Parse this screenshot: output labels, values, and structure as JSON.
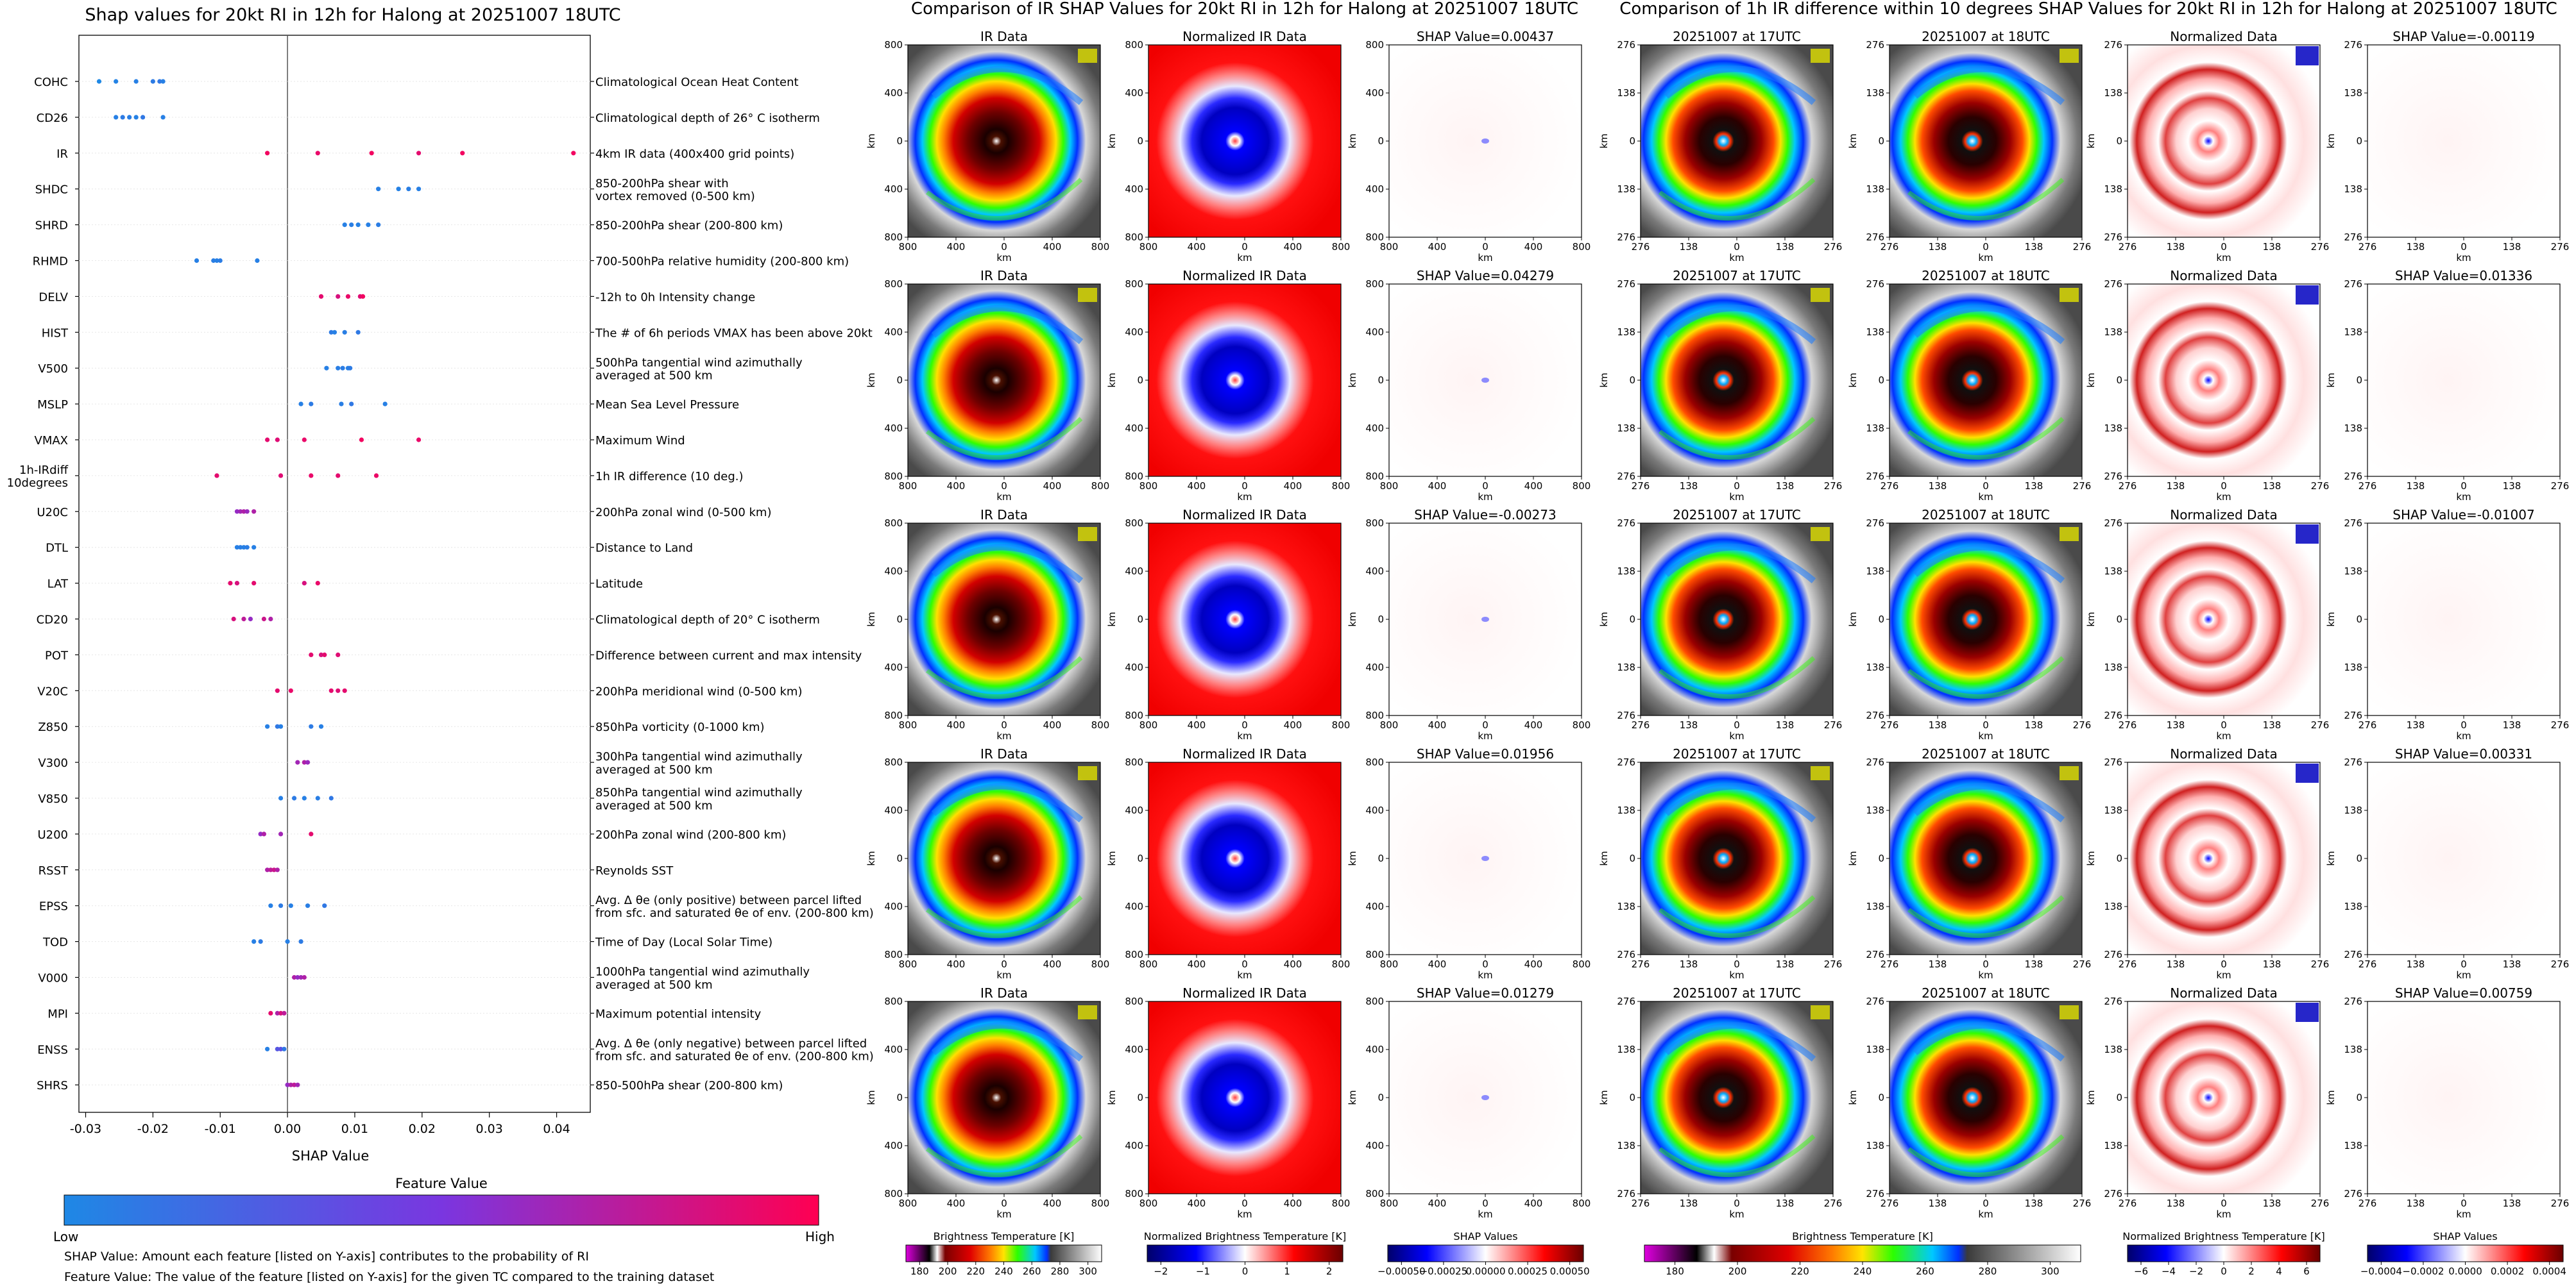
{
  "chart_data": [
    {
      "type": "scatter",
      "title": "Shap values for 20kt RI in 12h for Halong at 20251007 18UTC",
      "xlabel": "SHAP Value",
      "xlim": [
        -0.031,
        0.045
      ],
      "xticks": [
        -0.03,
        -0.02,
        -0.01,
        0.0,
        0.01,
        0.02,
        0.03,
        0.04
      ],
      "colorbar": {
        "title": "Feature Value",
        "low_label": "Low",
        "high_label": "High",
        "colors": [
          "#1e88e5",
          "#7a36e0",
          "#ff0052"
        ]
      },
      "footnotes": [
        "SHAP Value: Amount each feature [listed on Y-axis] contributes to the probability of RI",
        "Feature Value: The value of the feature [listed on Y-axis] for the given TC compared to the training dataset"
      ],
      "features": [
        {
          "name": "COHC",
          "desc": "Climatological Ocean Heat Content",
          "points": [
            [
              -0.028,
              0.0
            ],
            [
              -0.0255,
              0.03
            ],
            [
              -0.0225,
              0.05
            ],
            [
              -0.02,
              0.08
            ],
            [
              -0.019,
              0.1
            ],
            [
              -0.0185,
              0.05
            ]
          ]
        },
        {
          "name": "CD26",
          "desc": "Climatological depth of 26° C isotherm",
          "points": [
            [
              -0.0255,
              0.05
            ],
            [
              -0.0245,
              0.08
            ],
            [
              -0.0235,
              0.06
            ],
            [
              -0.0225,
              0.04
            ],
            [
              -0.0215,
              0.1
            ],
            [
              -0.0185,
              0.05
            ]
          ]
        },
        {
          "name": "IR",
          "desc": "4km IR data (400x400 grid points)",
          "points": [
            [
              -0.003,
              0.95
            ],
            [
              0.0045,
              0.92
            ],
            [
              0.0125,
              0.95
            ],
            [
              0.0195,
              0.9
            ],
            [
              0.026,
              0.95
            ],
            [
              0.0425,
              0.95
            ]
          ]
        },
        {
          "name": "SHDC",
          "desc": "850-200hPa shear with\nvortex removed (0-500 km)",
          "points": [
            [
              0.0135,
              0.05
            ],
            [
              0.0165,
              0.04
            ],
            [
              0.018,
              0.06
            ],
            [
              0.0195,
              0.05
            ]
          ]
        },
        {
          "name": "SHRD",
          "desc": "850-200hPa shear (200-800 km)",
          "points": [
            [
              0.0085,
              0.05
            ],
            [
              0.0095,
              0.06
            ],
            [
              0.0105,
              0.04
            ],
            [
              0.012,
              0.05
            ],
            [
              0.0135,
              0.07
            ]
          ]
        },
        {
          "name": "RHMD",
          "desc": "700-500hPa relative humidity (200-800 km)",
          "points": [
            [
              -0.0135,
              0.05
            ],
            [
              -0.011,
              0.06
            ],
            [
              -0.0105,
              0.05
            ],
            [
              -0.01,
              0.07
            ],
            [
              -0.0045,
              0.05
            ]
          ]
        },
        {
          "name": "DELV",
          "desc": "-12h to 0h Intensity change",
          "points": [
            [
              0.005,
              0.9
            ],
            [
              0.0075,
              0.85
            ],
            [
              0.009,
              0.92
            ],
            [
              0.0108,
              0.88
            ],
            [
              0.0112,
              0.95
            ]
          ]
        },
        {
          "name": "HIST",
          "desc": "The # of 6h periods VMAX has been above 20kt",
          "points": [
            [
              0.0065,
              0.08
            ],
            [
              0.007,
              0.05
            ],
            [
              0.0085,
              0.06
            ],
            [
              0.0105,
              0.09
            ]
          ]
        },
        {
          "name": "V500",
          "desc": "500hPa tangential wind azimuthally\naveraged at 500 km",
          "points": [
            [
              0.0058,
              0.05
            ],
            [
              0.0075,
              0.06
            ],
            [
              0.0082,
              0.07
            ],
            [
              0.009,
              0.05
            ],
            [
              0.0093,
              0.08
            ]
          ]
        },
        {
          "name": "MSLP",
          "desc": "Mean Sea Level Pressure",
          "points": [
            [
              0.002,
              0.05
            ],
            [
              0.0035,
              0.08
            ],
            [
              0.008,
              0.06
            ],
            [
              0.0095,
              0.1
            ],
            [
              0.0145,
              0.05
            ]
          ]
        },
        {
          "name": "VMAX",
          "desc": "Maximum Wind",
          "points": [
            [
              -0.003,
              0.9
            ],
            [
              -0.0015,
              0.88
            ],
            [
              0.0025,
              0.92
            ],
            [
              0.011,
              0.95
            ],
            [
              0.0195,
              0.92
            ]
          ]
        },
        {
          "name": "1h-IRdiff\n10degrees",
          "desc": "1h IR difference (10 deg.)",
          "points": [
            [
              -0.0105,
              0.9
            ],
            [
              -0.001,
              0.88
            ],
            [
              0.0035,
              0.92
            ],
            [
              0.0075,
              0.9
            ],
            [
              0.0132,
              0.93
            ]
          ]
        },
        {
          "name": "U20C",
          "desc": "200hPa zonal wind (0-500 km)",
          "points": [
            [
              -0.0075,
              0.6
            ],
            [
              -0.007,
              0.65
            ],
            [
              -0.0065,
              0.7
            ],
            [
              -0.006,
              0.62
            ],
            [
              -0.005,
              0.7
            ]
          ]
        },
        {
          "name": "DTL",
          "desc": "Distance to Land",
          "points": [
            [
              -0.0075,
              0.05
            ],
            [
              -0.007,
              0.06
            ],
            [
              -0.0065,
              0.05
            ],
            [
              -0.006,
              0.07
            ],
            [
              -0.005,
              0.05
            ]
          ]
        },
        {
          "name": "LAT",
          "desc": "Latitude",
          "points": [
            [
              -0.0085,
              0.9
            ],
            [
              -0.0075,
              0.85
            ],
            [
              -0.005,
              0.9
            ],
            [
              0.0025,
              0.85
            ],
            [
              0.0045,
              0.92
            ]
          ]
        },
        {
          "name": "CD20",
          "desc": "Climatological depth of 20° C isotherm",
          "points": [
            [
              -0.008,
              0.85
            ],
            [
              -0.0065,
              0.75
            ],
            [
              -0.0055,
              0.6
            ],
            [
              -0.0035,
              0.8
            ],
            [
              -0.0025,
              0.7
            ]
          ]
        },
        {
          "name": "POT",
          "desc": "Difference between current and max intensity",
          "points": [
            [
              0.0035,
              0.9
            ],
            [
              0.005,
              0.85
            ],
            [
              0.0055,
              0.9
            ],
            [
              0.0075,
              0.88
            ]
          ]
        },
        {
          "name": "V20C",
          "desc": "200hPa meridional wind (0-500 km)",
          "points": [
            [
              -0.0015,
              0.9
            ],
            [
              0.0005,
              0.92
            ],
            [
              0.0065,
              0.9
            ],
            [
              0.0075,
              0.88
            ],
            [
              0.0085,
              0.9
            ]
          ]
        },
        {
          "name": "Z850",
          "desc": "850hPa vorticity (0-1000 km)",
          "points": [
            [
              -0.003,
              0.05
            ],
            [
              -0.0015,
              0.1
            ],
            [
              -0.001,
              0.05
            ],
            [
              0.0035,
              0.08
            ],
            [
              0.005,
              0.05
            ]
          ]
        },
        {
          "name": "V300",
          "desc": "300hPa tangential wind azimuthally\naveraged at 500 km",
          "points": [
            [
              0.0015,
              0.65
            ],
            [
              0.0025,
              0.7
            ],
            [
              0.003,
              0.62
            ]
          ]
        },
        {
          "name": "V850",
          "desc": "850hPa tangential wind azimuthally\naveraged at 500 km",
          "points": [
            [
              -0.001,
              0.05
            ],
            [
              0.001,
              0.08
            ],
            [
              0.0025,
              0.05
            ],
            [
              0.0045,
              0.06
            ],
            [
              0.0065,
              0.1
            ]
          ]
        },
        {
          "name": "U200",
          "desc": "200hPa zonal wind (200-800 km)",
          "points": [
            [
              -0.004,
              0.6
            ],
            [
              -0.0035,
              0.7
            ],
            [
              -0.001,
              0.65
            ],
            [
              0.0035,
              0.9
            ]
          ]
        },
        {
          "name": "RSST",
          "desc": "Reynolds SST",
          "points": [
            [
              -0.003,
              0.7
            ],
            [
              -0.0025,
              0.75
            ],
            [
              -0.002,
              0.8
            ],
            [
              -0.0015,
              0.7
            ]
          ]
        },
        {
          "name": "EPSS",
          "desc": "Avg. Δ θe (only positive) between parcel lifted\nfrom sfc. and saturated θe of env. (200-800 km)",
          "points": [
            [
              -0.0025,
              0.05
            ],
            [
              -0.001,
              0.08
            ],
            [
              0.0005,
              0.05
            ],
            [
              0.003,
              0.06
            ],
            [
              0.0055,
              0.1
            ]
          ]
        },
        {
          "name": "TOD",
          "desc": "Time of Day (Local Solar Time)",
          "points": [
            [
              -0.005,
              0.05
            ],
            [
              -0.004,
              0.08
            ],
            [
              0.0,
              0.05
            ],
            [
              0.002,
              0.08
            ]
          ]
        },
        {
          "name": "V000",
          "desc": "1000hPa tangential wind azimuthally\naveraged at 500 km",
          "points": [
            [
              0.001,
              0.7
            ],
            [
              0.0015,
              0.6
            ],
            [
              0.002,
              0.65
            ],
            [
              0.0025,
              0.7
            ]
          ]
        },
        {
          "name": "MPI",
          "desc": "Maximum potential intensity",
          "points": [
            [
              -0.0025,
              0.9
            ],
            [
              -0.0015,
              0.7
            ],
            [
              -0.001,
              0.85
            ],
            [
              -0.0005,
              0.75
            ]
          ]
        },
        {
          "name": "ENSS",
          "desc": "Avg. Δ θe (only negative) between parcel lifted\nfrom sfc. and saturated θe of env. (200-800 km)",
          "points": [
            [
              -0.003,
              0.05
            ],
            [
              -0.0015,
              0.3
            ],
            [
              -0.001,
              0.35
            ],
            [
              -0.0005,
              0.1
            ]
          ]
        },
        {
          "name": "SHRS",
          "desc": "850-500hPa shear (200-800 km)",
          "points": [
            [
              0.0,
              0.6
            ],
            [
              0.0005,
              0.7
            ],
            [
              0.001,
              0.75
            ],
            [
              0.0015,
              0.65
            ]
          ]
        }
      ]
    },
    {
      "type": "heatmap",
      "title": "Comparison of IR SHAP Values for 20kt RI in 12h for Halong at 20251007 18UTC",
      "axis_label": "km",
      "ticks_x": [
        "800",
        "400",
        "0",
        "400",
        "800"
      ],
      "ticks_y": [
        "800",
        "400",
        "0",
        "400",
        "800"
      ],
      "column_titles": [
        "IR Data",
        "Normalized IR Data"
      ],
      "shap_titles": [
        "SHAP Value=0.00437",
        "SHAP Value=0.04279",
        "SHAP Value=-0.00273",
        "SHAP Value=0.01956",
        "SHAP Value=0.01279"
      ],
      "colorbars": [
        {
          "label": "Brightness Temperature [K]",
          "ticks": [
            "180",
            "200",
            "220",
            "240",
            "260",
            "280",
            "300"
          ]
        },
        {
          "label": "Normalized Brightness Temperature [K]",
          "ticks": [
            "−2",
            "−1",
            "0",
            "1",
            "2"
          ]
        },
        {
          "label": "SHAP Values",
          "ticks": [
            "−0.00050",
            "−0.00025",
            "0.00000",
            "0.00025",
            "0.00050"
          ]
        }
      ]
    },
    {
      "type": "heatmap",
      "title": "Comparison of 1h IR difference within 10 degrees SHAP Values for 20kt RI in 12h for Halong at 20251007 18UTC",
      "axis_label": "km",
      "ticks_x": [
        "276",
        "138",
        "0",
        "138",
        "276"
      ],
      "ticks_y": [
        "276",
        "138",
        "0",
        "138",
        "276"
      ],
      "column_titles": [
        "20251007 at 17UTC",
        "20251007 at 18UTC",
        "Normalized Data"
      ],
      "shap_titles": [
        "SHAP Value=-0.00119",
        "SHAP Value=0.01336",
        "SHAP Value=-0.01007",
        "SHAP Value=0.00331",
        "SHAP Value=0.00759"
      ],
      "colorbars": [
        {
          "label": "Brightness Temperature [K]",
          "ticks": [
            "180",
            "200",
            "220",
            "240",
            "260",
            "280",
            "300"
          ]
        },
        {
          "label": "Normalized Brightness Temperature [K]",
          "ticks": [
            "−6",
            "−4",
            "−2",
            "0",
            "2",
            "4",
            "6"
          ]
        },
        {
          "label": "SHAP Values",
          "ticks": [
            "−0.0004",
            "−0.0002",
            "0.0000",
            "0.0002",
            "0.0004"
          ]
        }
      ]
    }
  ],
  "colors": {
    "low": "#1e88e5",
    "high": "#ff0052",
    "ir_scale": [
      "#e000e0",
      "#000000",
      "#ffffff",
      "#7a0000",
      "#d40000",
      "#ff6a00",
      "#ffd000",
      "#2cff00",
      "#00c8ff",
      "#0038ff",
      "#3a3a3a",
      "#ffffff"
    ]
  }
}
